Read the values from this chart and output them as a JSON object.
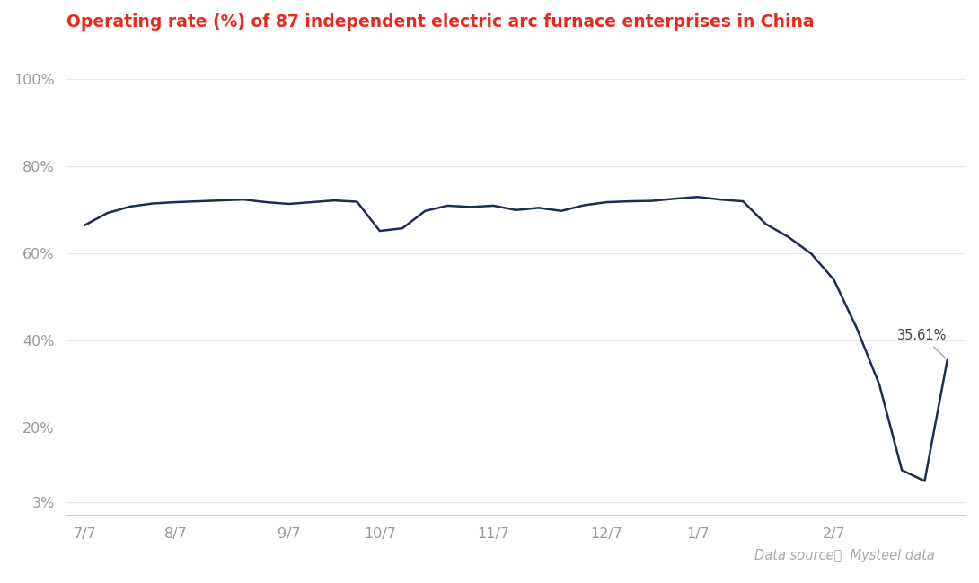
{
  "title": "Operating rate (%) of 87 independent electric arc furnace enterprises in China",
  "title_color": "#e8281e",
  "line_color": "#1c2d4f",
  "background_color": "#ffffff",
  "annotation_text": "35.61%",
  "data_source": "Data source：  Mysteel data",
  "x_labels": [
    "7/7",
    "8/7",
    "9/7",
    "10/7",
    "11/7",
    "12/7",
    "1/7",
    "2/7"
  ],
  "yticks": [
    0.03,
    0.2,
    0.4,
    0.6,
    0.8,
    1.0
  ],
  "ytick_labels": [
    "3%",
    "20%",
    "40%",
    "60%",
    "80%",
    "100%"
  ],
  "ylim": [
    0.0,
    1.08
  ],
  "values": [
    0.665,
    0.693,
    0.708,
    0.715,
    0.718,
    0.72,
    0.722,
    0.724,
    0.718,
    0.714,
    0.718,
    0.722,
    0.719,
    0.652,
    0.658,
    0.698,
    0.71,
    0.707,
    0.71,
    0.7,
    0.705,
    0.698,
    0.711,
    0.718,
    0.72,
    0.721,
    0.726,
    0.73,
    0.724,
    0.72,
    0.668,
    0.638,
    0.6,
    0.54,
    0.43,
    0.3,
    0.103,
    0.078,
    0.3561
  ],
  "xtick_positions": [
    0,
    4,
    9,
    13,
    18,
    23,
    27,
    33
  ]
}
